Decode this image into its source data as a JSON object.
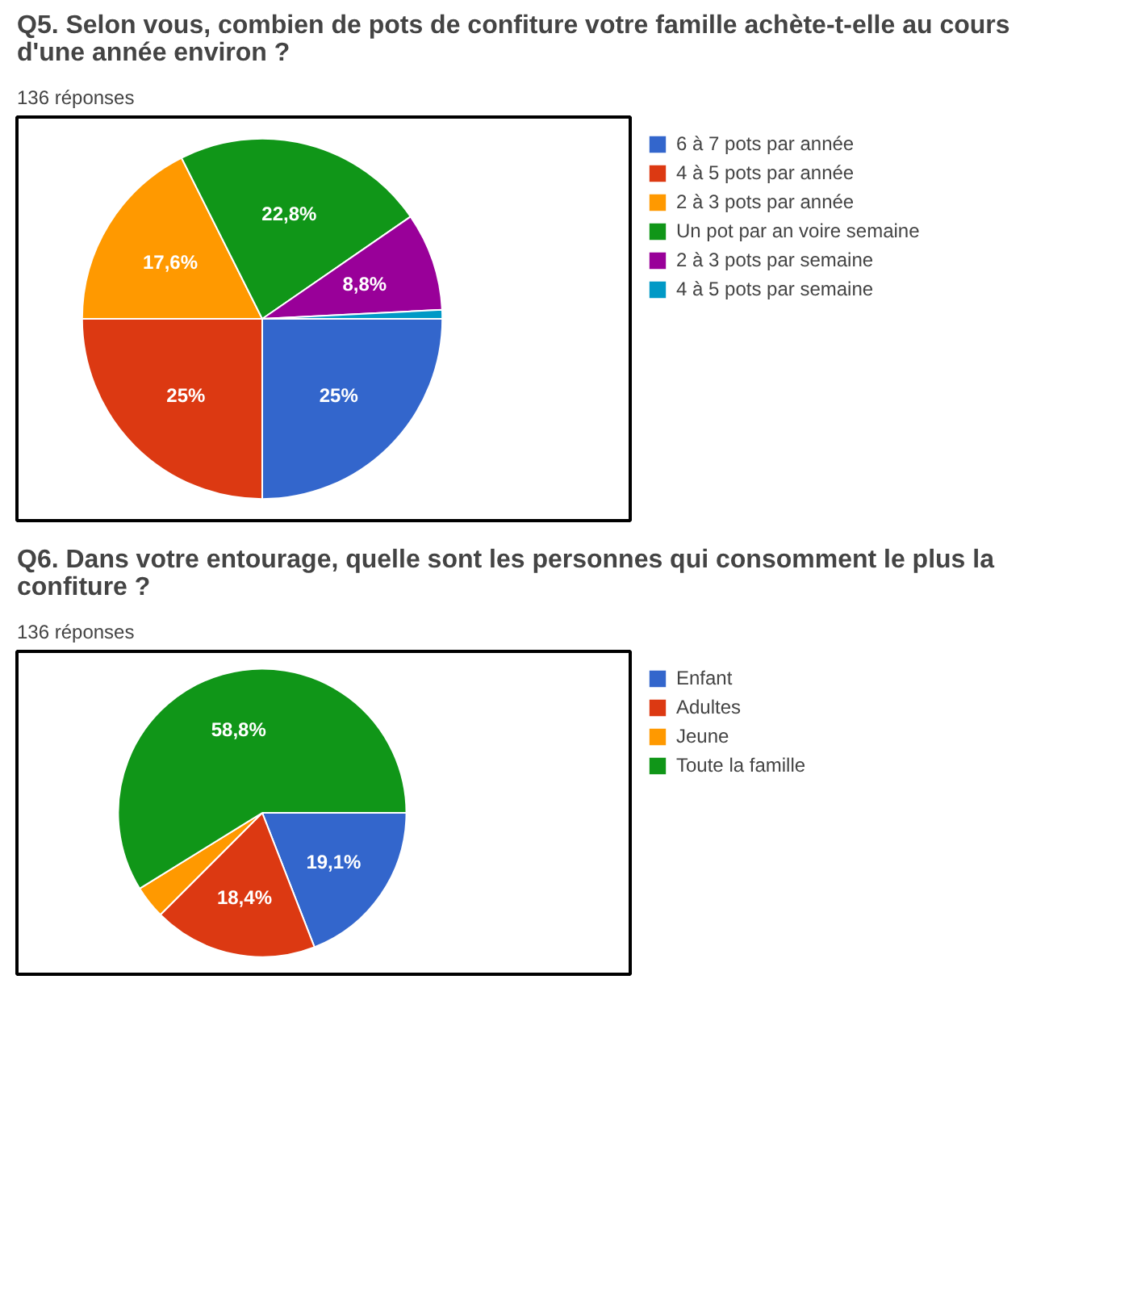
{
  "chart_data": [
    {
      "type": "pie",
      "title": "Q5. Selon vous, combien de pots de confiture votre famille achète-t-elle au cours d'une année environ ?",
      "subtitle": "136 réponses",
      "categories": [
        "6 à 7 pots par année",
        "4 à 5 pots par année",
        "2 à 3 pots par année",
        "Un pot par an voire semaine",
        "2 à 3 pots par semaine",
        "4 à 5 pots par semaine"
      ],
      "values": [
        25,
        25,
        17.6,
        22.8,
        8.8,
        0.8
      ],
      "value_labels": [
        "25%",
        "25%",
        "17,6%",
        "22,8%",
        "8,8%",
        null
      ],
      "colors": [
        "#3366cc",
        "#dc3912",
        "#ff9900",
        "#109618",
        "#990099",
        "#0099c6"
      ],
      "legend": "right"
    },
    {
      "type": "pie",
      "title": "Q6. Dans votre entourage, quelle sont les personnes qui consomment le plus la confiture ?",
      "subtitle": "136 réponses",
      "categories": [
        "Enfant",
        "Adultes",
        "Jeune",
        "Toute la famille"
      ],
      "values": [
        19.1,
        18.4,
        3.7,
        58.8
      ],
      "value_labels": [
        "19,1%",
        "18,4%",
        null,
        "58,8%"
      ],
      "colors": [
        "#3366cc",
        "#dc3912",
        "#ff9900",
        "#109618"
      ],
      "legend": "right"
    }
  ]
}
